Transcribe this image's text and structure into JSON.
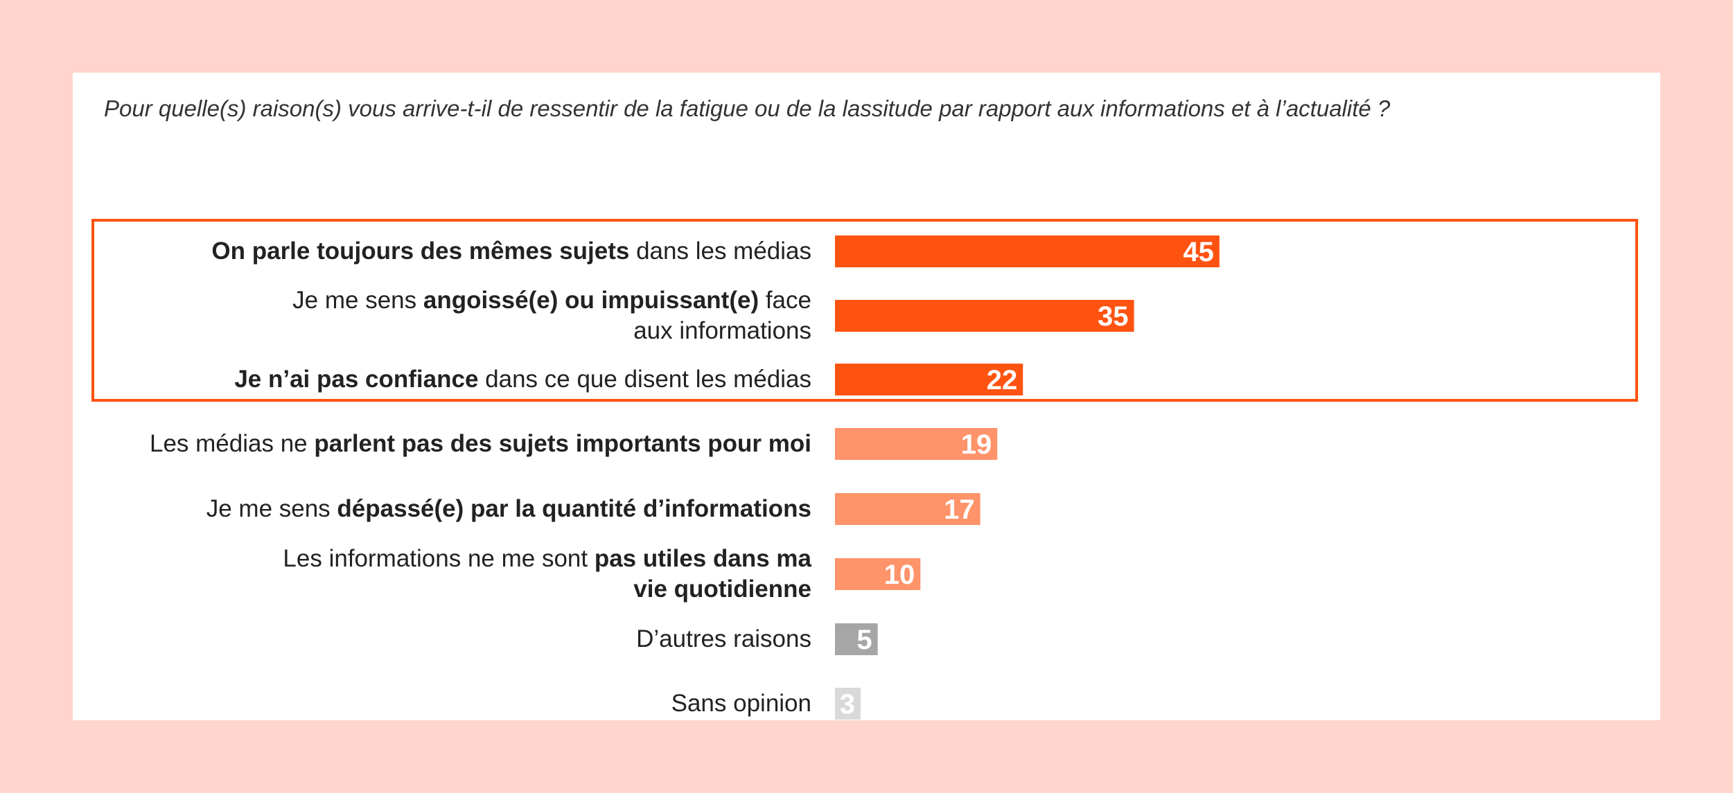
{
  "question": "Pour quelle(s) raison(s) vous arrive-t-il de ressentir de la fatigue ou de la lassitude par rapport aux informations et à l’actualité ?",
  "colors": {
    "page_background": "#ffd5cc",
    "highlight_border": "#fe5310",
    "top_bars": "#fe5310",
    "mid_bars": "#ff9369",
    "other_bar": "#a6a6a6",
    "no_opinion_bar": "#d9d9d9"
  },
  "highlight_group": [
    "On parle toujours des mêmes sujets dans les médias",
    "Je me sens angoissé(e) ou impuissant(e) face aux informations",
    "Je n’ai pas confiance dans ce que disent les médias"
  ],
  "categories": [
    {
      "parts": [
        {
          "text": "On parle toujours des mêmes sujets",
          "bold": true
        },
        {
          "text": " dans les médias",
          "bold": false
        }
      ],
      "value": 45,
      "color": "#fe5310"
    },
    {
      "parts": [
        {
          "text": "Je me sens ",
          "bold": false
        },
        {
          "text": "angoissé(e) ou impuissant(e)",
          "bold": true
        },
        {
          "text": " face aux informations",
          "bold": false
        }
      ],
      "value": 35,
      "color": "#fe5310"
    },
    {
      "parts": [
        {
          "text": "Je n’ai pas confiance",
          "bold": true
        },
        {
          "text": " dans ce que disent les médias",
          "bold": false
        }
      ],
      "value": 22,
      "color": "#fe5310"
    },
    {
      "parts": [
        {
          "text": "Les médias ne ",
          "bold": false
        },
        {
          "text": "parlent pas des sujets importants pour moi",
          "bold": true
        }
      ],
      "value": 19,
      "color": "#ff9369"
    },
    {
      "parts": [
        {
          "text": "Je me sens ",
          "bold": false
        },
        {
          "text": "dépassé(e) par la quantité d’informations",
          "bold": true
        }
      ],
      "value": 17,
      "color": "#ff9369"
    },
    {
      "parts": [
        {
          "text": "Les informations ne me sont ",
          "bold": false
        },
        {
          "text": "pas utiles dans ma vie quotidienne",
          "bold": true
        }
      ],
      "value": 10,
      "color": "#ff9369"
    },
    {
      "parts": [
        {
          "text": "D’autres raisons",
          "bold": false
        }
      ],
      "value": 5,
      "color": "#a6a6a6"
    },
    {
      "parts": [
        {
          "text": "Sans opinion",
          "bold": false
        }
      ],
      "value": 3,
      "color": "#d9d9d9"
    }
  ],
  "chart_data": {
    "type": "bar",
    "orientation": "horizontal",
    "title": "Pour quelle(s) raison(s) vous arrive-t-il de ressentir de la fatigue ou de la lassitude par rapport aux informations et à l’actualité ?",
    "categories": [
      "On parle toujours des mêmes sujets dans les médias",
      "Je me sens angoissé(e) ou impuissant(e) face aux informations",
      "Je n’ai pas confiance dans ce que disent les médias",
      "Les médias ne parlent pas des sujets importants pour moi",
      "Je me sens dépassé(e) par la quantité d’informations",
      "Les informations ne me sont pas utiles dans ma vie quotidienne",
      "D’autres raisons",
      "Sans opinion"
    ],
    "values": [
      45,
      35,
      22,
      19,
      17,
      10,
      5,
      3
    ],
    "xlabel": "",
    "ylabel": "",
    "xlim": [
      0,
      100
    ],
    "grid": false,
    "legend": "none"
  }
}
